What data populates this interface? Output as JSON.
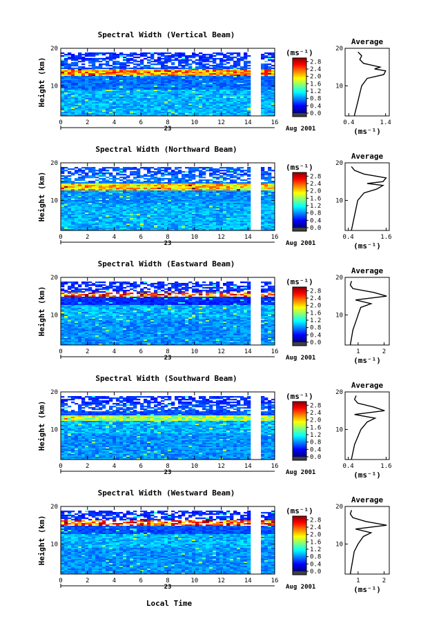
{
  "figure": {
    "x_axis_label": "Local Time",
    "date_day": "23",
    "date_month_year": "Aug 2001",
    "height_label": "Height (km)",
    "unit_label": "(ms⁻¹)",
    "average_title": "Average",
    "average_unit": "(ms⁻¹)"
  },
  "chart_data": [
    {
      "type": "heatmap",
      "title": "Spectral Width (Vertical Beam)",
      "xlabel": "Local Time",
      "ylabel": "Height (km)",
      "xlim": [
        0,
        16
      ],
      "ylim": [
        2,
        20
      ],
      "x_ticks": [
        0,
        2,
        4,
        6,
        8,
        10,
        12,
        14,
        16
      ],
      "y_ticks": [
        10,
        20
      ],
      "data_gap_hours": [
        14.0,
        14.9
      ],
      "colorbar": {
        "unit": "(ms⁻¹)",
        "ticks": [
          0.0,
          0.4,
          0.8,
          1.2,
          1.6,
          2.0,
          2.4,
          2.8
        ],
        "range": [
          0.0,
          3.0
        ]
      },
      "layers": [
        {
          "height_range_km": [
            2,
            9
          ],
          "value": 0.9
        },
        {
          "height_range_km": [
            9,
            13
          ],
          "value": 0.7
        },
        {
          "height_range_km": [
            13,
            14.5
          ],
          "value": 2.2
        },
        {
          "height_range_km": [
            14.5,
            17
          ],
          "value": 0.6
        },
        {
          "height_range_km": [
            17,
            19
          ],
          "value": 0.5
        }
      ],
      "average_profile": {
        "xlabel": "(ms⁻¹)",
        "x_ticks": [
          0.4,
          1.4
        ],
        "xlim": [
          0.3,
          1.5
        ],
        "y_ticks": [
          10,
          20
        ],
        "height_km": [
          2,
          4,
          6,
          8,
          10,
          12,
          13,
          14,
          14.5,
          15,
          16,
          17,
          18,
          19
        ],
        "value": [
          0.55,
          0.6,
          0.65,
          0.7,
          0.75,
          0.9,
          1.35,
          1.4,
          1.1,
          1.25,
          0.8,
          0.7,
          0.75,
          0.65
        ]
      }
    },
    {
      "type": "heatmap",
      "title": "Spectral Width (Northward Beam)",
      "xlabel": "Local Time",
      "ylabel": "Height (km)",
      "xlim": [
        0,
        16
      ],
      "ylim": [
        2,
        20
      ],
      "x_ticks": [
        0,
        2,
        4,
        6,
        8,
        10,
        12,
        14,
        16
      ],
      "y_ticks": [
        10,
        20
      ],
      "data_gap_hours": [
        14.0,
        14.9
      ],
      "colorbar": {
        "unit": "(ms⁻¹)",
        "ticks": [
          0.0,
          0.4,
          0.8,
          1.2,
          1.6,
          2.0,
          2.4,
          2.8
        ],
        "range": [
          0.0,
          3.0
        ]
      },
      "layers": [
        {
          "height_range_km": [
            2,
            9
          ],
          "value": 0.9
        },
        {
          "height_range_km": [
            9,
            13
          ],
          "value": 0.8
        },
        {
          "height_range_km": [
            13,
            14.5
          ],
          "value": 2.0
        },
        {
          "height_range_km": [
            14.5,
            17
          ],
          "value": 0.7
        },
        {
          "height_range_km": [
            17,
            19
          ],
          "value": 0.6
        }
      ],
      "average_profile": {
        "xlabel": "(ms⁻¹)",
        "x_ticks": [
          0.4,
          1.6
        ],
        "xlim": [
          0.3,
          1.7
        ],
        "y_ticks": [
          10,
          20
        ],
        "height_km": [
          2,
          4,
          6,
          8,
          10,
          12,
          13,
          14,
          14.5,
          15,
          16,
          17,
          18,
          19
        ],
        "value": [
          0.5,
          0.55,
          0.6,
          0.65,
          0.7,
          0.9,
          1.3,
          1.5,
          1.0,
          1.5,
          1.6,
          0.9,
          0.6,
          0.5
        ]
      }
    },
    {
      "type": "heatmap",
      "title": "Spectral Width (Eastward Beam)",
      "xlabel": "Local Time",
      "ylabel": "Height (km)",
      "xlim": [
        0,
        16
      ],
      "ylim": [
        2,
        20
      ],
      "x_ticks": [
        0,
        2,
        4,
        6,
        8,
        10,
        12,
        14,
        16
      ],
      "y_ticks": [
        10,
        20
      ],
      "data_gap_hours": [
        14.0,
        14.9
      ],
      "colorbar": {
        "unit": "(ms⁻¹)",
        "ticks": [
          0.0,
          0.4,
          0.8,
          1.2,
          1.6,
          2.0,
          2.4,
          2.8
        ],
        "range": [
          0.0,
          3.0
        ]
      },
      "layers": [
        {
          "height_range_km": [
            2,
            9
          ],
          "value": 0.8
        },
        {
          "height_range_km": [
            9,
            13
          ],
          "value": 0.9
        },
        {
          "height_range_km": [
            13,
            15
          ],
          "value": 0.5
        },
        {
          "height_range_km": [
            15,
            16.2
          ],
          "value": 2.4
        },
        {
          "height_range_km": [
            16.2,
            19
          ],
          "value": 0.5
        }
      ],
      "average_profile": {
        "xlabel": "(ms⁻¹)",
        "x_ticks": [
          1,
          2
        ],
        "xlim": [
          0.5,
          2.2
        ],
        "y_ticks": [
          10,
          20
        ],
        "height_km": [
          2,
          4,
          6,
          8,
          10,
          12,
          13,
          14,
          15,
          16,
          17,
          18,
          19
        ],
        "value": [
          0.7,
          0.75,
          0.8,
          0.9,
          1.0,
          1.1,
          1.5,
          0.9,
          2.1,
          1.6,
          0.8,
          0.7,
          0.75
        ]
      }
    },
    {
      "type": "heatmap",
      "title": "Spectral Width (Southward Beam)",
      "xlabel": "Local Time",
      "ylabel": "Height (km)",
      "xlim": [
        0,
        16
      ],
      "ylim": [
        2,
        20
      ],
      "x_ticks": [
        0,
        2,
        4,
        6,
        8,
        10,
        12,
        14,
        16
      ],
      "y_ticks": [
        10,
        20
      ],
      "data_gap_hours": [
        14.0,
        14.9
      ],
      "colorbar": {
        "unit": "(ms⁻¹)",
        "ticks": [
          0.0,
          0.4,
          0.8,
          1.2,
          1.6,
          2.0,
          2.4,
          2.8
        ],
        "range": [
          0.0,
          3.0
        ]
      },
      "layers": [
        {
          "height_range_km": [
            2,
            9
          ],
          "value": 0.8
        },
        {
          "height_range_km": [
            9,
            12.5
          ],
          "value": 0.9
        },
        {
          "height_range_km": [
            12.5,
            14
          ],
          "value": 1.6
        },
        {
          "height_range_km": [
            14,
            17
          ],
          "value": 0.6
        },
        {
          "height_range_km": [
            17,
            19
          ],
          "value": 0.5
        }
      ],
      "average_profile": {
        "xlabel": "(ms⁻¹)",
        "x_ticks": [
          0.4,
          1.6
        ],
        "xlim": [
          0.3,
          1.7
        ],
        "y_ticks": [
          10,
          20
        ],
        "height_km": [
          2,
          4,
          6,
          8,
          10,
          12,
          13,
          14,
          15,
          16,
          17,
          18,
          19
        ],
        "value": [
          0.5,
          0.55,
          0.6,
          0.7,
          0.8,
          1.0,
          1.25,
          0.6,
          1.55,
          1.2,
          0.7,
          0.6,
          0.65
        ]
      }
    },
    {
      "type": "heatmap",
      "title": "Spectral Width (Westward Beam)",
      "xlabel": "Local Time",
      "ylabel": "Height (km)",
      "xlim": [
        0,
        16
      ],
      "ylim": [
        2,
        20
      ],
      "x_ticks": [
        0,
        2,
        4,
        6,
        8,
        10,
        12,
        14,
        16
      ],
      "y_ticks": [
        10,
        20
      ],
      "data_gap_hours": [
        14.0,
        14.9
      ],
      "colorbar": {
        "unit": "(ms⁻¹)",
        "ticks": [
          0.0,
          0.4,
          0.8,
          1.2,
          1.6,
          2.0,
          2.4,
          2.8
        ],
        "range": [
          0.0,
          3.0
        ]
      },
      "layers": [
        {
          "height_range_km": [
            2,
            9
          ],
          "value": 0.8
        },
        {
          "height_range_km": [
            9,
            13
          ],
          "value": 0.9
        },
        {
          "height_range_km": [
            13,
            15
          ],
          "value": 0.6
        },
        {
          "height_range_km": [
            15,
            16.5
          ],
          "value": 2.4
        },
        {
          "height_range_km": [
            16.5,
            19
          ],
          "value": 0.5
        }
      ],
      "average_profile": {
        "xlabel": "(ms⁻¹)",
        "x_ticks": [
          1,
          2
        ],
        "xlim": [
          0.5,
          2.2
        ],
        "y_ticks": [
          10,
          20
        ],
        "height_km": [
          2,
          4,
          6,
          8,
          10,
          12,
          13,
          14,
          15,
          16,
          17,
          18,
          19
        ],
        "value": [
          0.7,
          0.75,
          0.8,
          0.85,
          1.0,
          1.2,
          1.5,
          0.9,
          2.1,
          1.3,
          0.8,
          0.7,
          0.75
        ]
      }
    }
  ]
}
